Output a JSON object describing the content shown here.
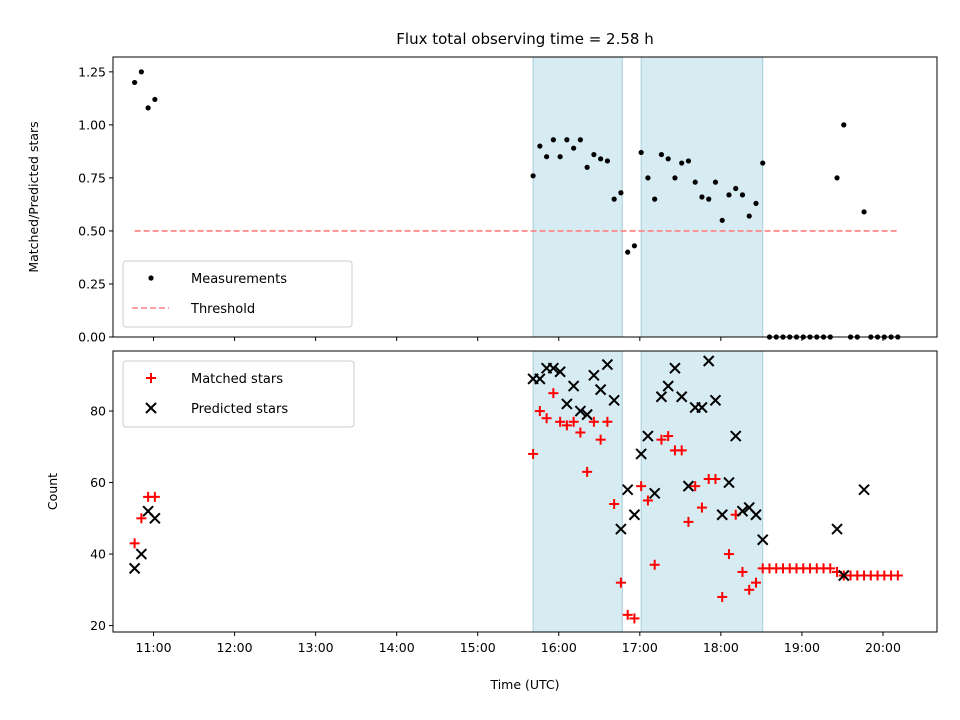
{
  "chart_data": [
    {
      "type": "scatter",
      "title": "Flux total observing time = 2.58 h",
      "ylabel": "Matched/Predicted stars",
      "xlabel": "",
      "xlim": [
        "10:30",
        "20:40"
      ],
      "ylim": [
        0,
        1.32
      ],
      "xticks": [
        "11:00",
        "12:00",
        "13:00",
        "14:00",
        "15:00",
        "16:00",
        "17:00",
        "18:00",
        "19:00",
        "20:00"
      ],
      "yticks": [
        "0.00",
        "0.25",
        "0.50",
        "0.75",
        "1.00",
        "1.25"
      ],
      "spans": [
        {
          "start": "15:41",
          "end": "16:47"
        },
        {
          "start": "17:01",
          "end": "18:31"
        }
      ],
      "legend": {
        "position": "lower-left",
        "entries": [
          "Measurements",
          "Threshold"
        ]
      },
      "series": [
        {
          "name": "Measurements",
          "color": "#000000",
          "points": [
            {
              "x": "10:46",
              "y": 1.2
            },
            {
              "x": "10:51",
              "y": 1.25
            },
            {
              "x": "10:56",
              "y": 1.08
            },
            {
              "x": "11:01",
              "y": 1.12
            },
            {
              "x": "15:41",
              "y": 0.76
            },
            {
              "x": "15:46",
              "y": 0.9
            },
            {
              "x": "15:51",
              "y": 0.85
            },
            {
              "x": "15:56",
              "y": 0.93
            },
            {
              "x": "16:01",
              "y": 0.85
            },
            {
              "x": "16:06",
              "y": 0.93
            },
            {
              "x": "16:11",
              "y": 0.89
            },
            {
              "x": "16:16",
              "y": 0.93
            },
            {
              "x": "16:21",
              "y": 0.8
            },
            {
              "x": "16:26",
              "y": 0.86
            },
            {
              "x": "16:31",
              "y": 0.84
            },
            {
              "x": "16:36",
              "y": 0.83
            },
            {
              "x": "16:41",
              "y": 0.65
            },
            {
              "x": "16:46",
              "y": 0.68
            },
            {
              "x": "16:51",
              "y": 0.4
            },
            {
              "x": "16:56",
              "y": 0.43
            },
            {
              "x": "17:01",
              "y": 0.87
            },
            {
              "x": "17:06",
              "y": 0.75
            },
            {
              "x": "17:11",
              "y": 0.65
            },
            {
              "x": "17:16",
              "y": 0.86
            },
            {
              "x": "17:21",
              "y": 0.84
            },
            {
              "x": "17:26",
              "y": 0.75
            },
            {
              "x": "17:31",
              "y": 0.82
            },
            {
              "x": "17:36",
              "y": 0.83
            },
            {
              "x": "17:41",
              "y": 0.73
            },
            {
              "x": "17:46",
              "y": 0.66
            },
            {
              "x": "17:51",
              "y": 0.65
            },
            {
              "x": "17:56",
              "y": 0.73
            },
            {
              "x": "18:01",
              "y": 0.55
            },
            {
              "x": "18:06",
              "y": 0.67
            },
            {
              "x": "18:11",
              "y": 0.7
            },
            {
              "x": "18:16",
              "y": 0.67
            },
            {
              "x": "18:21",
              "y": 0.57
            },
            {
              "x": "18:26",
              "y": 0.63
            },
            {
              "x": "18:31",
              "y": 0.82
            },
            {
              "x": "18:36",
              "y": 0
            },
            {
              "x": "18:41",
              "y": 0
            },
            {
              "x": "18:46",
              "y": 0
            },
            {
              "x": "18:51",
              "y": 0
            },
            {
              "x": "18:56",
              "y": 0
            },
            {
              "x": "19:01",
              "y": 0
            },
            {
              "x": "19:06",
              "y": 0
            },
            {
              "x": "19:11",
              "y": 0
            },
            {
              "x": "19:16",
              "y": 0
            },
            {
              "x": "19:21",
              "y": 0
            },
            {
              "x": "19:26",
              "y": 0.75
            },
            {
              "x": "19:31",
              "y": 1.0
            },
            {
              "x": "19:36",
              "y": 0
            },
            {
              "x": "19:41",
              "y": 0
            },
            {
              "x": "19:46",
              "y": 0.59
            },
            {
              "x": "19:51",
              "y": 0
            },
            {
              "x": "19:56",
              "y": 0
            },
            {
              "x": "20:01",
              "y": 0
            },
            {
              "x": "20:06",
              "y": 0
            },
            {
              "x": "20:11",
              "y": 0
            }
          ]
        },
        {
          "name": "Threshold",
          "color": "#ff7f7f",
          "style": "dashed",
          "points": [
            {
              "x": "10:46",
              "y": 0.5
            },
            {
              "x": "20:11",
              "y": 0.5
            }
          ]
        }
      ]
    },
    {
      "type": "scatter",
      "title": "",
      "ylabel": "Count",
      "xlabel": "Time (UTC)",
      "xlim": [
        "10:30",
        "20:40"
      ],
      "ylim": [
        18.2,
        96.8
      ],
      "xticks": [
        "11:00",
        "12:00",
        "13:00",
        "14:00",
        "15:00",
        "16:00",
        "17:00",
        "18:00",
        "19:00",
        "20:00"
      ],
      "yticks": [
        "20",
        "40",
        "60",
        "80"
      ],
      "spans": [
        {
          "start": "15:41",
          "end": "16:47"
        },
        {
          "start": "17:01",
          "end": "18:31"
        }
      ],
      "legend": {
        "position": "top-left",
        "entries": [
          "Matched stars",
          "Predicted stars"
        ]
      },
      "series": [
        {
          "name": "Matched stars",
          "marker": "plus",
          "color": "#ff0000",
          "points": [
            {
              "x": "10:46",
              "y": 43
            },
            {
              "x": "10:51",
              "y": 50
            },
            {
              "x": "10:56",
              "y": 56
            },
            {
              "x": "11:01",
              "y": 56
            },
            {
              "x": "15:41",
              "y": 68
            },
            {
              "x": "15:46",
              "y": 80
            },
            {
              "x": "15:51",
              "y": 78
            },
            {
              "x": "15:56",
              "y": 85
            },
            {
              "x": "16:01",
              "y": 77
            },
            {
              "x": "16:06",
              "y": 76
            },
            {
              "x": "16:11",
              "y": 77
            },
            {
              "x": "16:16",
              "y": 74
            },
            {
              "x": "16:21",
              "y": 63
            },
            {
              "x": "16:26",
              "y": 77
            },
            {
              "x": "16:31",
              "y": 72
            },
            {
              "x": "16:36",
              "y": 77
            },
            {
              "x": "16:41",
              "y": 54
            },
            {
              "x": "16:46",
              "y": 32
            },
            {
              "x": "16:51",
              "y": 23
            },
            {
              "x": "16:56",
              "y": 22
            },
            {
              "x": "17:01",
              "y": 59
            },
            {
              "x": "17:06",
              "y": 55
            },
            {
              "x": "17:11",
              "y": 37
            },
            {
              "x": "17:16",
              "y": 72
            },
            {
              "x": "17:21",
              "y": 73
            },
            {
              "x": "17:26",
              "y": 69
            },
            {
              "x": "17:31",
              "y": 69
            },
            {
              "x": "17:36",
              "y": 49
            },
            {
              "x": "17:41",
              "y": 59
            },
            {
              "x": "17:46",
              "y": 53
            },
            {
              "x": "17:51",
              "y": 61
            },
            {
              "x": "17:56",
              "y": 61
            },
            {
              "x": "18:01",
              "y": 28
            },
            {
              "x": "18:06",
              "y": 40
            },
            {
              "x": "18:11",
              "y": 51
            },
            {
              "x": "18:16",
              "y": 35
            },
            {
              "x": "18:21",
              "y": 30
            },
            {
              "x": "18:26",
              "y": 32
            },
            {
              "x": "18:31",
              "y": 36
            },
            {
              "x": "18:36",
              "y": 36
            },
            {
              "x": "18:41",
              "y": 36
            },
            {
              "x": "18:46",
              "y": 36
            },
            {
              "x": "18:51",
              "y": 36
            },
            {
              "x": "18:56",
              "y": 36
            },
            {
              "x": "19:01",
              "y": 36
            },
            {
              "x": "19:06",
              "y": 36
            },
            {
              "x": "19:11",
              "y": 36
            },
            {
              "x": "19:16",
              "y": 36
            },
            {
              "x": "19:21",
              "y": 36
            },
            {
              "x": "19:26",
              "y": 35
            },
            {
              "x": "19:31",
              "y": 34
            },
            {
              "x": "19:36",
              "y": 34
            },
            {
              "x": "19:41",
              "y": 34
            },
            {
              "x": "19:46",
              "y": 34
            },
            {
              "x": "19:51",
              "y": 34
            },
            {
              "x": "19:56",
              "y": 34
            },
            {
              "x": "20:01",
              "y": 34
            },
            {
              "x": "20:06",
              "y": 34
            },
            {
              "x": "20:11",
              "y": 34
            }
          ]
        },
        {
          "name": "Predicted stars",
          "marker": "x",
          "color": "#000000",
          "points": [
            {
              "x": "10:46",
              "y": 36
            },
            {
              "x": "10:51",
              "y": 40
            },
            {
              "x": "10:56",
              "y": 52
            },
            {
              "x": "11:01",
              "y": 50
            },
            {
              "x": "15:41",
              "y": 89
            },
            {
              "x": "15:46",
              "y": 89
            },
            {
              "x": "15:51",
              "y": 92
            },
            {
              "x": "15:56",
              "y": 92
            },
            {
              "x": "16:01",
              "y": 91
            },
            {
              "x": "16:06",
              "y": 82
            },
            {
              "x": "16:11",
              "y": 87
            },
            {
              "x": "16:16",
              "y": 80
            },
            {
              "x": "16:21",
              "y": 79
            },
            {
              "x": "16:26",
              "y": 90
            },
            {
              "x": "16:31",
              "y": 86
            },
            {
              "x": "16:36",
              "y": 93
            },
            {
              "x": "16:41",
              "y": 83
            },
            {
              "x": "16:46",
              "y": 47
            },
            {
              "x": "16:51",
              "y": 58
            },
            {
              "x": "16:56",
              "y": 51
            },
            {
              "x": "17:01",
              "y": 68
            },
            {
              "x": "17:06",
              "y": 73
            },
            {
              "x": "17:11",
              "y": 57
            },
            {
              "x": "17:16",
              "y": 84
            },
            {
              "x": "17:21",
              "y": 87
            },
            {
              "x": "17:26",
              "y": 92
            },
            {
              "x": "17:31",
              "y": 84
            },
            {
              "x": "17:36",
              "y": 59
            },
            {
              "x": "17:41",
              "y": 81
            },
            {
              "x": "17:46",
              "y": 81
            },
            {
              "x": "17:51",
              "y": 94
            },
            {
              "x": "17:56",
              "y": 83
            },
            {
              "x": "18:01",
              "y": 51
            },
            {
              "x": "18:06",
              "y": 60
            },
            {
              "x": "18:11",
              "y": 73
            },
            {
              "x": "18:16",
              "y": 52
            },
            {
              "x": "18:21",
              "y": 53
            },
            {
              "x": "18:26",
              "y": 51
            },
            {
              "x": "18:31",
              "y": 44
            },
            {
              "x": "19:26",
              "y": 47
            },
            {
              "x": "19:31",
              "y": 34
            },
            {
              "x": "19:46",
              "y": 58
            }
          ]
        }
      ]
    }
  ]
}
